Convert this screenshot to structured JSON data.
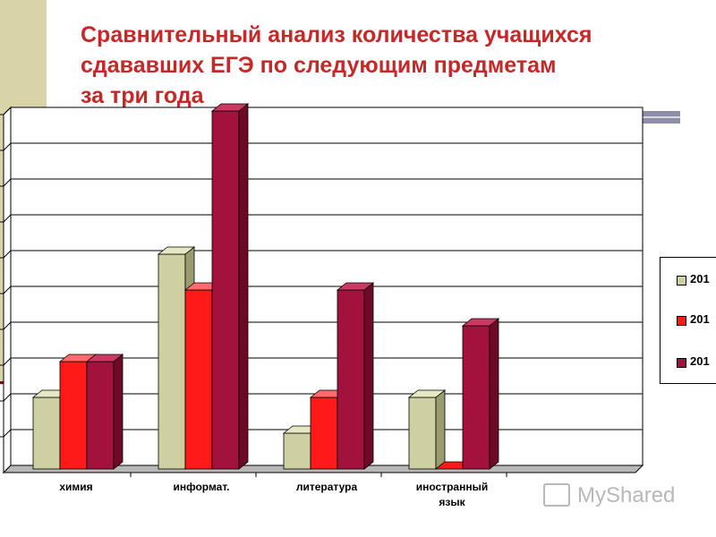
{
  "slide": {
    "title_lines": [
      "Сравнительный анализ количества учащихся",
      "сдававших ЕГЭ по следующим предметам",
      "за три года"
    ],
    "watermark_text": "MyShared"
  },
  "colors": {
    "title": "#c62828",
    "series": [
      "#cfd0a2",
      "#ff1a1a",
      "#a3123c"
    ],
    "series_side": [
      "#9a9b6e",
      "#b80000",
      "#6e0a28"
    ],
    "series_top": [
      "#e6e7c4",
      "#ff6b6b",
      "#c93a62"
    ]
  },
  "chart_data": {
    "type": "bar",
    "title": "",
    "xlabel": "",
    "ylabel": "",
    "categories": [
      "химия",
      "информат.",
      "литература",
      "иностранный язык"
    ],
    "series": [
      {
        "name": "201",
        "values": [
          2,
          6,
          1,
          2
        ]
      },
      {
        "name": "201",
        "values": [
          3,
          5,
          2,
          0
        ]
      },
      {
        "name": "201",
        "values": [
          3,
          10,
          5,
          4
        ]
      }
    ],
    "ylim": [
      0,
      10
    ],
    "grid": true,
    "legend": "right"
  }
}
